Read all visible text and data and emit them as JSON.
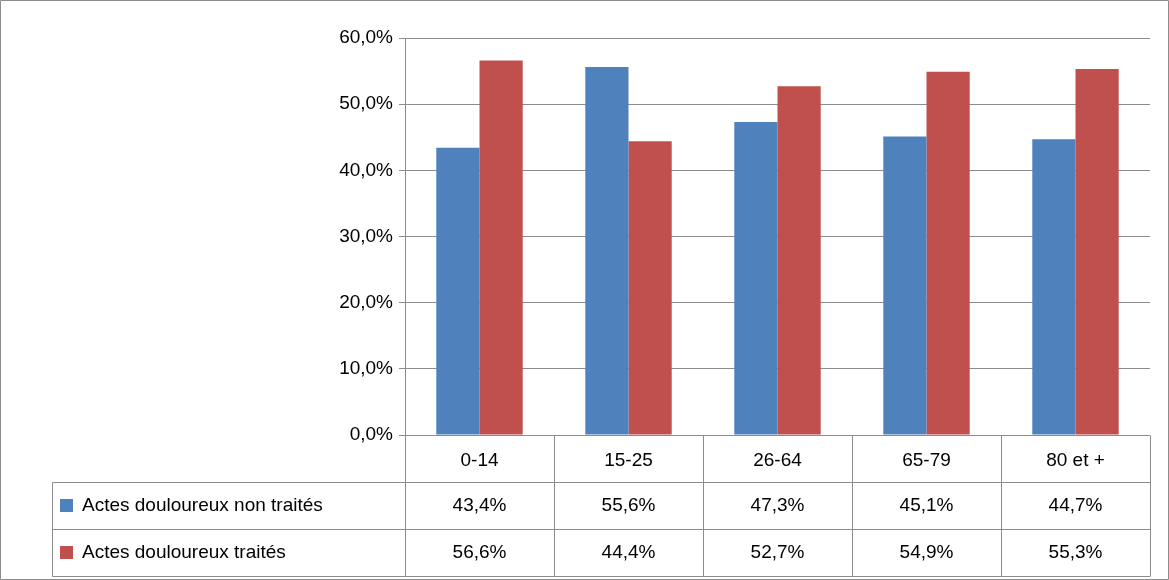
{
  "chart_data": {
    "type": "bar",
    "categories": [
      "0-14",
      "15-25",
      "26-64",
      "65-79",
      "80 et +"
    ],
    "series": [
      {
        "name": "Actes douloureux non traités",
        "color": "#4f81bd",
        "values": [
          43.4,
          55.6,
          47.3,
          45.1,
          44.7
        ],
        "value_labels": [
          "43,4%",
          "55,6%",
          "47,3%",
          "45,1%",
          "44,7%"
        ]
      },
      {
        "name": "Actes douloureux traités",
        "color": "#c0504d",
        "values": [
          56.6,
          44.4,
          52.7,
          54.9,
          55.3
        ],
        "value_labels": [
          "56,6%",
          "44,4%",
          "52,7%",
          "54,9%",
          "55,3%"
        ]
      }
    ],
    "ylim": [
      0,
      60
    ],
    "yticks": [
      {
        "value": 0,
        "label": "0,0%"
      },
      {
        "value": 10,
        "label": "10,0%"
      },
      {
        "value": 20,
        "label": "20,0%"
      },
      {
        "value": 30,
        "label": "30,0%"
      },
      {
        "value": 40,
        "label": "40,0%"
      },
      {
        "value": 50,
        "label": "50,0%"
      },
      {
        "value": 60,
        "label": "60,0%"
      }
    ],
    "grid": "y",
    "legend": "bottom"
  }
}
